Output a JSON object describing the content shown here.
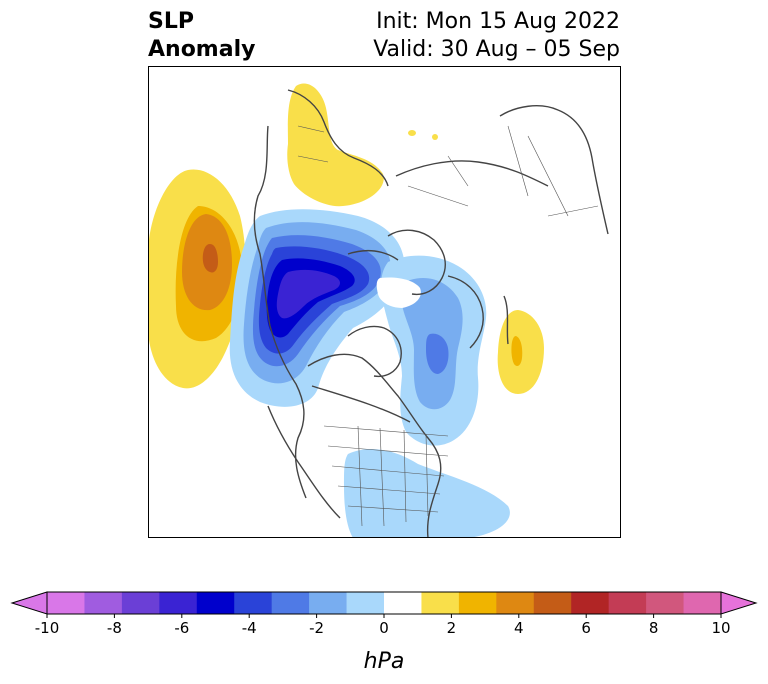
{
  "title": {
    "left_line1": "SLP",
    "left_line2": "Anomaly",
    "init": "Init: Mon 15 Aug 2022",
    "valid": "Valid: 30 Aug – 05 Sep"
  },
  "colorbar": {
    "unit_label": "hPa",
    "tick_labels": [
      "-10",
      "-8",
      "-6",
      "-4",
      "-2",
      "0",
      "2",
      "4",
      "6",
      "8",
      "10"
    ],
    "colors": [
      "#d977e8",
      "#a05ce0",
      "#6b3fd6",
      "#3a23d3",
      "#0000cc",
      "#2a43d8",
      "#4f7ae6",
      "#78adf0",
      "#a9d8fb",
      "#ffffff",
      "#f9df4a",
      "#f0b400",
      "#de8812",
      "#c45c17",
      "#b12525",
      "#c33c55",
      "#d1577d",
      "#df67af"
    ],
    "extend_low_color": "#d977e8",
    "extend_high_color": "#e672da"
  },
  "map": {
    "anomalies": [
      {
        "name": "Gulf of Alaska low",
        "sign": "negative",
        "peak_hpa": -6
      },
      {
        "name": "Northeast Pacific high",
        "sign": "positive",
        "peak_hpa": 5
      },
      {
        "name": "Scandinavia high",
        "sign": "positive",
        "peak_hpa": 1.5
      },
      {
        "name": "Greenland/Labrador low",
        "sign": "negative",
        "peak_hpa": -3
      },
      {
        "name": "Eastern Atlantic high",
        "sign": "positive",
        "peak_hpa": 3
      },
      {
        "name": "Eastern US low",
        "sign": "negative",
        "peak_hpa": -1.5
      }
    ]
  }
}
